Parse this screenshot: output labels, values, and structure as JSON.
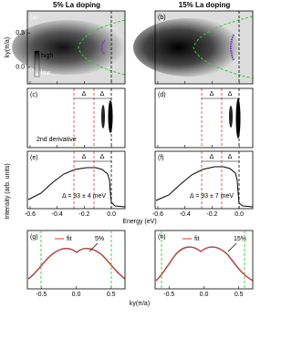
{
  "titles": [
    "5% La doping",
    "15% La doping"
  ],
  "panel_labels": [
    "(a)",
    "(b)",
    "(c)",
    "(d)",
    "(e)",
    "(f)",
    "(g)",
    "(h)"
  ],
  "colorbar": {
    "high": "high",
    "low": "low"
  },
  "ky_axis": {
    "label": "ky(π/a)",
    "lim": [
      -0.24,
      0.82
    ],
    "ticks": [
      0.5,
      {
        "value": 0,
        "label": "0.0"
      }
    ]
  },
  "intensity_label": "Intensity (arb. units)",
  "energy_axis": {
    "label": "Energy (eV)",
    "lim": [
      -0.62,
      0.1
    ],
    "ticks": [
      -0.6,
      -0.4,
      -0.2,
      {
        "value": 0,
        "label": "0.0"
      }
    ]
  },
  "k_axis": {
    "label": "ky(π/a)",
    "lim": [
      -0.7,
      0.7
    ],
    "ticks": [
      -0.5,
      {
        "value": 0,
        "label": "0.0"
      },
      0.5
    ]
  },
  "delta": "Δ",
  "derivative_label": "2nd derivative",
  "gaps": [
    "Δ = 93 ± 4 meV",
    "Δ = 93 ± 7 meV"
  ],
  "fit": "fit",
  "dopings": [
    "5%",
    "15%"
  ]
}
